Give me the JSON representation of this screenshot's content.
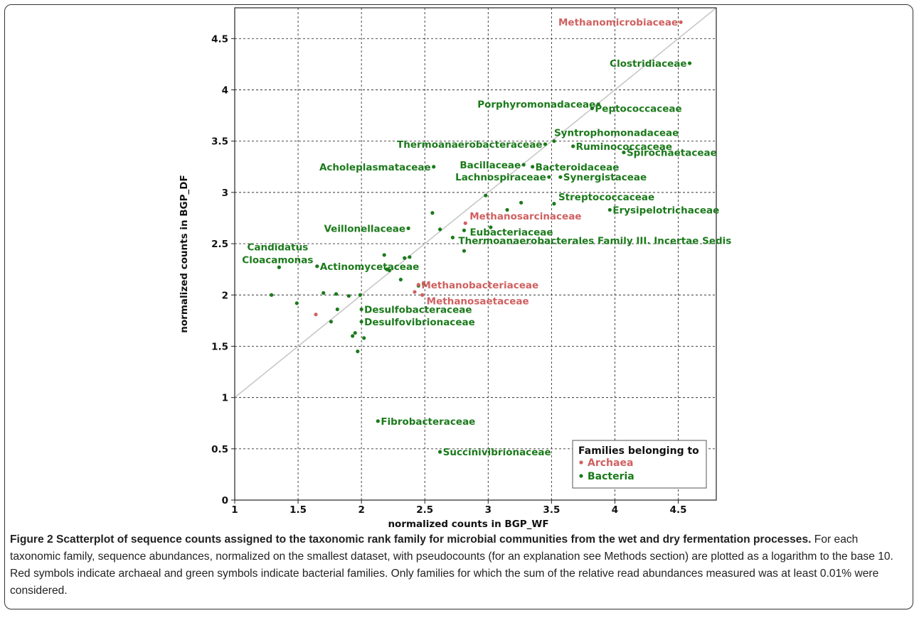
{
  "figure": {
    "caption_title": "Figure 2 Scatterplot of sequence counts assigned to the taxonomic rank family for microbial communities from the wet and dry fermentation processes.",
    "caption_body": " For each taxonomic family, sequence abundances, normalized on the smallest dataset, with pseudocounts (for an explanation see Methods section) are plotted as a logarithm to the base 10. Red symbols indicate archaeal and green symbols indicate bacterial families. Only families for which the sum of the relative read abundances measured was at least 0.01% were considered."
  },
  "colors": {
    "archaea": "#d06060",
    "bacteria": "#1b7a1b",
    "grid": "#333333",
    "diagonal": "#c8c8c8"
  },
  "chart_data": {
    "type": "scatter",
    "title": "",
    "xlabel": "normalized counts in  BGP_WF",
    "ylabel": "normalized counts in  BGP_DF",
    "xlim": [
      1,
      4.8
    ],
    "ylim": [
      0,
      4.8
    ],
    "xticks": [
      1,
      1.5,
      2,
      2.5,
      3,
      3.5,
      4,
      4.5
    ],
    "xtick_labels": [
      "1",
      "1.5",
      "2",
      "2.5",
      "3",
      "3.5",
      "4",
      "4.5"
    ],
    "yticks": [
      0,
      0.5,
      1,
      1.5,
      2,
      2.5,
      3,
      3.5,
      4,
      4.5
    ],
    "ytick_labels": [
      "0",
      "0.5",
      "1",
      "1.5",
      "2",
      "2.5",
      "3",
      "3.5",
      "4",
      "4.5"
    ],
    "grid": true,
    "diagonal_line": true,
    "legend": {
      "title": "Families belonging to",
      "position": "bottom-right",
      "entries": [
        {
          "label": "Archaea",
          "group": "archaea"
        },
        {
          "label": "Bacteria",
          "group": "bacteria"
        }
      ]
    },
    "labeled_points": [
      {
        "label": "Methanomicrobiaceae",
        "x": 4.52,
        "y": 4.66,
        "group": "archaea",
        "anchor": "end"
      },
      {
        "label": "Clostridiaceae",
        "x": 4.59,
        "y": 4.26,
        "group": "bacteria",
        "anchor": "end"
      },
      {
        "label": "Porphyromonadaceae",
        "x": 3.87,
        "y": 3.86,
        "group": "bacteria",
        "anchor": "end"
      },
      {
        "label": "Peptococcaceae",
        "x": 3.82,
        "y": 3.82,
        "group": "bacteria",
        "anchor": "start"
      },
      {
        "label": "Syntrophomonadaceae",
        "x": 3.52,
        "y": 3.5,
        "group": "bacteria",
        "anchor": "start",
        "dx": -4,
        "dy": -12
      },
      {
        "label": "Thermoanaerobacteraceae",
        "x": 3.45,
        "y": 3.47,
        "group": "bacteria",
        "anchor": "end"
      },
      {
        "label": "Ruminococcaceae",
        "x": 3.67,
        "y": 3.45,
        "group": "bacteria",
        "anchor": "start"
      },
      {
        "label": "Spirochaetaceae",
        "x": 4.07,
        "y": 3.39,
        "group": "bacteria",
        "anchor": "start"
      },
      {
        "label": "Acholeplasmataceae",
        "x": 2.57,
        "y": 3.25,
        "group": "bacteria",
        "anchor": "end"
      },
      {
        "label": "Bacillaceae",
        "x": 3.28,
        "y": 3.27,
        "group": "bacteria",
        "anchor": "end"
      },
      {
        "label": "Bacteroidaceae",
        "x": 3.35,
        "y": 3.25,
        "group": "bacteria",
        "anchor": "start"
      },
      {
        "label": "Lachnospiraceae",
        "x": 3.48,
        "y": 3.15,
        "group": "bacteria",
        "anchor": "end"
      },
      {
        "label": "Synergistaceae",
        "x": 3.57,
        "y": 3.15,
        "group": "bacteria",
        "anchor": "start"
      },
      {
        "label": "Streptococcaceae",
        "x": 3.52,
        "y": 2.89,
        "group": "bacteria",
        "anchor": "start",
        "dx": 2,
        "dy": -10
      },
      {
        "label": "Erysipelotrichaceae",
        "x": 3.96,
        "y": 2.83,
        "group": "bacteria",
        "anchor": "start"
      },
      {
        "label": "Methanosarcinaceae",
        "x": 2.82,
        "y": 2.7,
        "group": "archaea",
        "anchor": "start",
        "dx": 2,
        "dy": -10
      },
      {
        "label": "Veillonellaceae",
        "x": 2.37,
        "y": 2.65,
        "group": "bacteria",
        "anchor": "end"
      },
      {
        "label": "Eubacteriaceae",
        "x": 2.81,
        "y": 2.63,
        "group": "bacteria",
        "anchor": "start",
        "dx": 4,
        "dy": 2
      },
      {
        "label": "Thermoanaerobacterales Family III. Incertae Sedis",
        "x": 2.72,
        "y": 2.56,
        "group": "bacteria",
        "anchor": "start",
        "dx": 4,
        "dy": 4
      },
      {
        "label": "Actinomycetaceae",
        "x": 1.65,
        "y": 2.28,
        "group": "bacteria",
        "anchor": "start"
      },
      {
        "label": "Methanobacteriaceae",
        "x": 2.45,
        "y": 2.1,
        "group": "archaea",
        "anchor": "start"
      },
      {
        "label": "Methanosaetaceae",
        "x": 2.48,
        "y": 2.0,
        "group": "archaea",
        "anchor": "start",
        "dx": 2,
        "dy": 8
      },
      {
        "label": "Desulfobacteraceae",
        "x": 2.0,
        "y": 1.86,
        "group": "bacteria",
        "anchor": "start"
      },
      {
        "label": "Desulfovibrionaceae",
        "x": 2.0,
        "y": 1.74,
        "group": "bacteria",
        "anchor": "start"
      },
      {
        "label": "Fibrobacteraceae",
        "x": 2.13,
        "y": 0.77,
        "group": "bacteria",
        "anchor": "start"
      },
      {
        "label": "Succinivibrionaceae",
        "x": 2.62,
        "y": 0.47,
        "group": "bacteria",
        "anchor": "start"
      }
    ],
    "candidatus_point": {
      "x": 1.35,
      "y": 2.27,
      "group": "bacteria",
      "label_line1": "Candidatus",
      "label_line2": "Cloacamonas"
    },
    "unlabeled_points": [
      {
        "x": 1.29,
        "y": 2.0,
        "group": "bacteria"
      },
      {
        "x": 1.49,
        "y": 1.92,
        "group": "bacteria"
      },
      {
        "x": 1.64,
        "y": 1.81,
        "group": "archaea"
      },
      {
        "x": 1.7,
        "y": 2.02,
        "group": "bacteria"
      },
      {
        "x": 1.76,
        "y": 1.74,
        "group": "bacteria"
      },
      {
        "x": 1.8,
        "y": 2.01,
        "group": "bacteria"
      },
      {
        "x": 1.81,
        "y": 1.86,
        "group": "bacteria"
      },
      {
        "x": 1.9,
        "y": 1.99,
        "group": "bacteria"
      },
      {
        "x": 1.93,
        "y": 1.6,
        "group": "bacteria"
      },
      {
        "x": 1.95,
        "y": 1.63,
        "group": "bacteria"
      },
      {
        "x": 1.97,
        "y": 1.45,
        "group": "bacteria"
      },
      {
        "x": 1.99,
        "y": 2.0,
        "group": "bacteria"
      },
      {
        "x": 2.02,
        "y": 1.58,
        "group": "bacteria"
      },
      {
        "x": 2.18,
        "y": 2.39,
        "group": "bacteria"
      },
      {
        "x": 2.2,
        "y": 2.25,
        "group": "bacteria"
      },
      {
        "x": 2.22,
        "y": 2.24,
        "group": "bacteria"
      },
      {
        "x": 2.31,
        "y": 2.15,
        "group": "bacteria"
      },
      {
        "x": 2.34,
        "y": 2.36,
        "group": "bacteria"
      },
      {
        "x": 2.38,
        "y": 2.37,
        "group": "bacteria"
      },
      {
        "x": 2.42,
        "y": 2.03,
        "group": "archaea"
      },
      {
        "x": 2.45,
        "y": 2.09,
        "group": "bacteria"
      },
      {
        "x": 2.49,
        "y": 2.11,
        "group": "bacteria"
      },
      {
        "x": 2.56,
        "y": 2.8,
        "group": "bacteria"
      },
      {
        "x": 2.62,
        "y": 2.64,
        "group": "bacteria"
      },
      {
        "x": 2.81,
        "y": 2.43,
        "group": "bacteria"
      },
      {
        "x": 2.98,
        "y": 2.97,
        "group": "bacteria"
      },
      {
        "x": 3.02,
        "y": 2.66,
        "group": "bacteria"
      },
      {
        "x": 3.15,
        "y": 2.83,
        "group": "bacteria"
      },
      {
        "x": 3.26,
        "y": 2.9,
        "group": "bacteria"
      }
    ]
  }
}
